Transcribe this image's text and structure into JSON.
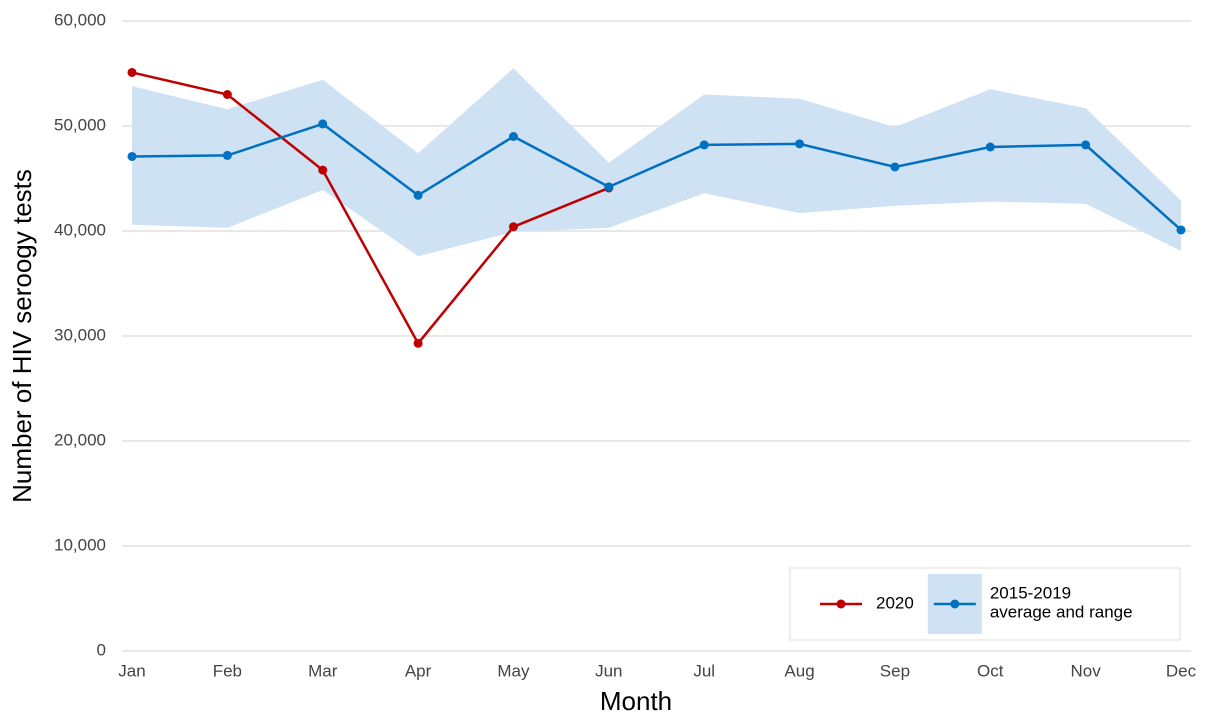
{
  "chart_data": {
    "type": "line",
    "x_label": "Month",
    "y_label": "Number of HIV seroogy tests",
    "categories": [
      "Jan",
      "Feb",
      "Mar",
      "Apr",
      "May",
      "Jun",
      "Jul",
      "Aug",
      "Sep",
      "Oct",
      "Nov",
      "Dec"
    ],
    "series": [
      {
        "name": "2020",
        "color": "#c00000",
        "values": [
          55100,
          53000,
          45800,
          29300,
          40400,
          44100,
          null,
          null,
          null,
          null,
          null,
          null
        ]
      },
      {
        "name": "2015-2019\naverage and range",
        "color": "#0070c0",
        "band_color": "#cfe2f3",
        "values": [
          47100,
          47200,
          50200,
          43400,
          49000,
          44200,
          48200,
          48300,
          46100,
          48000,
          48200,
          40100
        ],
        "upper": [
          53800,
          51600,
          54400,
          47400,
          55500,
          46500,
          53000,
          52600,
          49900,
          53500,
          51700,
          42900
        ],
        "lower": [
          40600,
          40300,
          43900,
          37600,
          39900,
          40300,
          43600,
          41700,
          42400,
          42800,
          42600,
          38100
        ]
      }
    ],
    "ylim": [
      0,
      60000
    ],
    "yticks": [
      0,
      {
        "value": 10000,
        "label": "10,000"
      },
      {
        "value": 20000,
        "label": "20,000"
      },
      {
        "value": 30000,
        "label": "30,000"
      },
      {
        "value": 40000,
        "label": "40,000"
      },
      {
        "value": 50000,
        "label": "50,000"
      },
      {
        "value": 60000,
        "label": "60,000"
      }
    ],
    "grid": true,
    "legend_position": "bottom-right"
  }
}
